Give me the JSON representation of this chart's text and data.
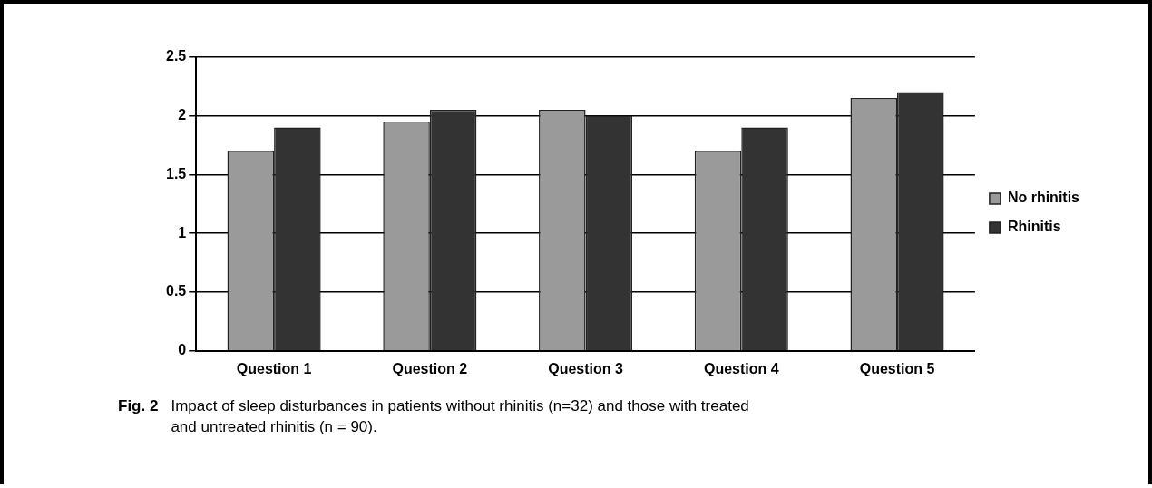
{
  "chart_data": {
    "type": "bar",
    "categories": [
      "Question 1",
      "Question 2",
      "Question 3",
      "Question 4",
      "Question 5"
    ],
    "series": [
      {
        "name": "No rhinitis",
        "color": "#9a9a9a",
        "values": [
          1.7,
          1.95,
          2.05,
          1.7,
          2.15
        ]
      },
      {
        "name": "Rhinitis",
        "color": "#333333",
        "values": [
          1.9,
          2.05,
          2.0,
          1.9,
          2.2
        ]
      }
    ],
    "ylim": [
      0,
      2.5
    ],
    "yticks": [
      0,
      0.5,
      1,
      1.5,
      2,
      2.5
    ],
    "grid": "y",
    "legend": "right",
    "annotations": [
      "Fig. 2",
      "Impact of sleep disturbances in patients without rhinitis (n=32) and those with treated and untreated rhinitis (n = 90)."
    ]
  }
}
